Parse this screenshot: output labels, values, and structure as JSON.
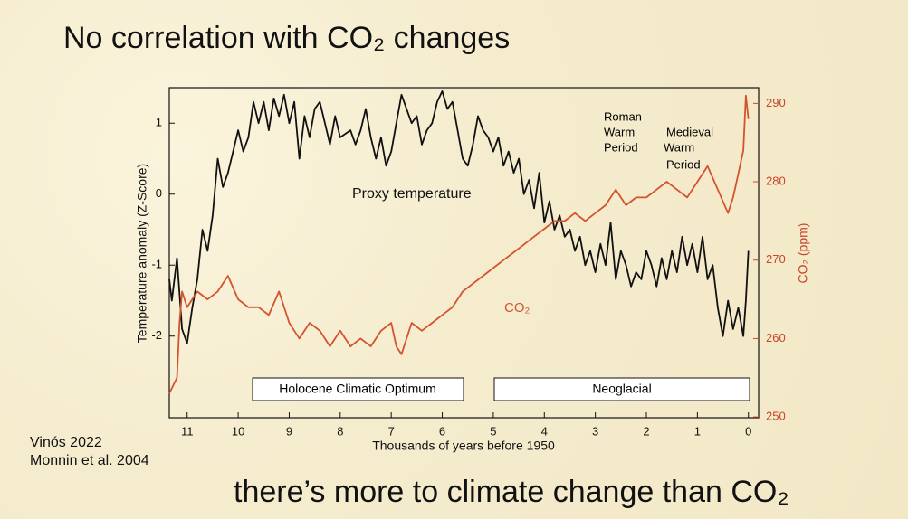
{
  "chart_data": {
    "type": "line",
    "title": "No correlation with CO₂ changes",
    "xlabel": "Thousands of years before 1950",
    "ylabel": "Temperature anomaly (Z-Score)",
    "y2label": "CO₂ (ppm)",
    "xlim": [
      11.35,
      -0.2
    ],
    "xticks": [
      0,
      1,
      2,
      3,
      4,
      5,
      6,
      7,
      8,
      9,
      10,
      11
    ],
    "ylim": [
      -3.15,
      1.5
    ],
    "yticks": [
      -2,
      -1,
      0,
      1
    ],
    "y2lim": [
      249.9,
      292
    ],
    "y2ticks": [
      250,
      260,
      270,
      280,
      290
    ],
    "series": [
      {
        "name": "Proxy temperature",
        "color": "#111111",
        "x": [
          11.35,
          11.3,
          11.2,
          11.1,
          11.0,
          10.9,
          10.8,
          10.7,
          10.6,
          10.5,
          10.4,
          10.3,
          10.2,
          10.1,
          10.0,
          9.9,
          9.8,
          9.7,
          9.6,
          9.5,
          9.4,
          9.3,
          9.2,
          9.1,
          9.0,
          8.9,
          8.8,
          8.7,
          8.6,
          8.5,
          8.4,
          8.3,
          8.2,
          8.1,
          8.0,
          7.9,
          7.8,
          7.7,
          7.6,
          7.5,
          7.4,
          7.3,
          7.2,
          7.1,
          7.0,
          6.9,
          6.8,
          6.7,
          6.6,
          6.5,
          6.4,
          6.3,
          6.2,
          6.1,
          6.0,
          5.9,
          5.8,
          5.7,
          5.6,
          5.5,
          5.4,
          5.3,
          5.2,
          5.1,
          5.0,
          4.9,
          4.8,
          4.7,
          4.6,
          4.5,
          4.4,
          4.3,
          4.2,
          4.1,
          4.0,
          3.9,
          3.8,
          3.7,
          3.6,
          3.5,
          3.4,
          3.3,
          3.2,
          3.1,
          3.0,
          2.9,
          2.8,
          2.7,
          2.6,
          2.5,
          2.4,
          2.3,
          2.2,
          2.1,
          2.0,
          1.9,
          1.8,
          1.7,
          1.6,
          1.5,
          1.4,
          1.3,
          1.2,
          1.1,
          1.0,
          0.9,
          0.8,
          0.7,
          0.6,
          0.5,
          0.4,
          0.3,
          0.2,
          0.1,
          0.05,
          0.0
        ],
        "values": [
          -1.2,
          -1.5,
          -0.9,
          -1.9,
          -2.1,
          -1.6,
          -1.2,
          -0.5,
          -0.8,
          -0.3,
          0.5,
          0.1,
          0.3,
          0.6,
          0.9,
          0.6,
          0.8,
          1.3,
          1.0,
          1.3,
          0.9,
          1.35,
          1.1,
          1.4,
          1.0,
          1.3,
          0.5,
          1.1,
          0.8,
          1.2,
          1.3,
          1.0,
          0.7,
          1.1,
          0.8,
          0.85,
          0.9,
          0.7,
          0.9,
          1.2,
          0.8,
          0.5,
          0.8,
          0.4,
          0.6,
          1.0,
          1.4,
          1.2,
          1.0,
          1.1,
          0.7,
          0.9,
          1.0,
          1.3,
          1.45,
          1.2,
          1.3,
          0.9,
          0.5,
          0.4,
          0.7,
          1.1,
          0.9,
          0.8,
          0.6,
          0.8,
          0.4,
          0.6,
          0.3,
          0.5,
          0.0,
          0.2,
          -0.2,
          0.3,
          -0.4,
          -0.1,
          -0.5,
          -0.3,
          -0.6,
          -0.5,
          -0.8,
          -0.6,
          -1.0,
          -0.8,
          -1.1,
          -0.7,
          -1.0,
          -0.4,
          -1.2,
          -0.8,
          -1.0,
          -1.3,
          -1.1,
          -1.2,
          -0.8,
          -1.0,
          -1.3,
          -0.9,
          -1.2,
          -0.8,
          -1.1,
          -0.6,
          -1.0,
          -0.7,
          -1.1,
          -0.6,
          -1.2,
          -1.0,
          -1.6,
          -2.0,
          -1.5,
          -1.9,
          -1.6,
          -2.0,
          -1.5,
          -0.8
        ]
      },
      {
        "name": "CO₂",
        "color": "#d4532f",
        "axis": "y2",
        "x": [
          11.35,
          11.2,
          11.15,
          11.1,
          11.0,
          10.8,
          10.6,
          10.4,
          10.2,
          10.0,
          9.8,
          9.6,
          9.4,
          9.2,
          9.0,
          8.9,
          8.8,
          8.6,
          8.4,
          8.2,
          8.0,
          7.8,
          7.6,
          7.4,
          7.2,
          7.0,
          6.9,
          6.8,
          6.6,
          6.4,
          6.2,
          6.0,
          5.8,
          5.6,
          5.4,
          5.2,
          5.0,
          4.8,
          4.6,
          4.4,
          4.2,
          4.0,
          3.8,
          3.6,
          3.4,
          3.2,
          3.0,
          2.8,
          2.6,
          2.4,
          2.2,
          2.0,
          1.8,
          1.6,
          1.4,
          1.2,
          1.0,
          0.8,
          0.6,
          0.4,
          0.3,
          0.2,
          0.1,
          0.05,
          0.0
        ],
        "values": [
          253,
          255,
          262,
          266,
          264,
          266,
          265,
          266,
          268,
          265,
          264,
          264,
          263,
          266,
          262,
          261,
          260,
          262,
          261,
          259,
          261,
          259,
          260,
          259,
          261,
          262,
          259,
          258,
          262,
          261,
          262,
          263,
          264,
          266,
          267,
          268,
          269,
          270,
          271,
          272,
          273,
          274,
          275,
          275,
          276,
          275,
          276,
          277,
          279,
          277,
          278,
          278,
          279,
          280,
          279,
          278,
          280,
          282,
          279,
          276,
          278,
          281,
          284,
          291,
          288
        ]
      }
    ],
    "annotations": {
      "roman": [
        "Roman",
        "Warm",
        "Period"
      ],
      "medieval": [
        "Medieval",
        "Warm",
        "Period"
      ],
      "holocene": "Holocene Climatic Optimum",
      "neoglacial": "Neoglacial"
    },
    "credits": [
      "Vinós 2022",
      "Monnin et al. 2004"
    ],
    "subtitle": "there’s more to climate change than CO₂"
  }
}
